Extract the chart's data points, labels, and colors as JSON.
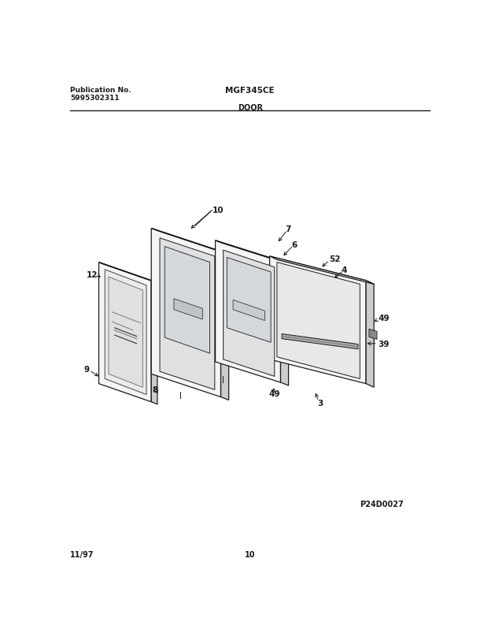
{
  "title_left1": "Publication No.",
  "title_left2": "5995302311",
  "title_center": "MGF345CE",
  "title_section": "DOOR",
  "footer_left": "11/97",
  "footer_center": "10",
  "diagram_id": "P24D0027",
  "bg": "#ffffff",
  "lc": "#1a1a1a",
  "fc_light": "#f5f5f5",
  "fc_mid": "#e8e8e8",
  "fc_dark": "#d8d8d8",
  "fc_side": "#cccccc"
}
